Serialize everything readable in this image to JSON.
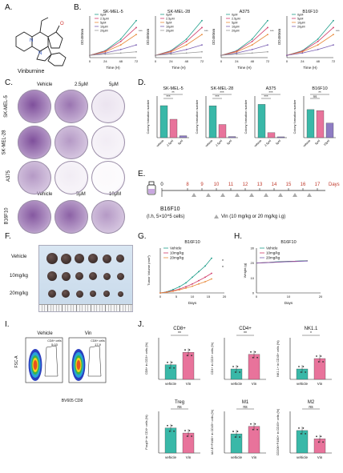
{
  "panel_labels": [
    "A.",
    "B.",
    "C.",
    "D.",
    "E.",
    "F.",
    "G.",
    "H.",
    "I.",
    "J."
  ],
  "panelA": {
    "compound": "Vinburnine"
  },
  "panelB": {
    "cell_lines": [
      "SK-MEL-5",
      "SK-MEL-28",
      "A375",
      "B16F10"
    ],
    "ylabel": "OD450nm",
    "xlabel": "Time (H)",
    "x_ticks": [
      "0",
      "24",
      "48",
      "72"
    ],
    "legend": [
      "0μM",
      "2.5μM",
      "5μM",
      "10μM",
      "20μM"
    ],
    "legend_b16": [
      "0μM",
      "5μM",
      "10μM",
      "20μM"
    ],
    "colors": [
      "#1f9e8a",
      "#d03a6a",
      "#e8893a",
      "#7a5fb3",
      "#999999"
    ]
  },
  "panelC": {
    "columns_top": [
      "Vehicle",
      "2.5μM",
      "5μM"
    ],
    "columns_bottom": [
      "Vehicle",
      "5μM",
      "10μM"
    ],
    "rows": [
      "SK-MEL-5",
      "SK-MEL-28",
      "A375",
      "B16F10"
    ]
  },
  "panelD": {
    "ylabel": "Colony formation number",
    "chart_data": [
      {
        "type": "bar",
        "title": "SK-MEL-5",
        "categories": [
          "vehicle",
          "2.5μM",
          "5μM"
        ],
        "values": [
          200,
          115,
          12
        ],
        "ylim": [
          0,
          260
        ],
        "sig": [
          "***",
          "**"
        ]
      },
      {
        "type": "bar",
        "title": "SK-MEL-28",
        "categories": [
          "vehicle",
          "2.5μM",
          "5μM"
        ],
        "values": [
          230,
          95,
          8
        ],
        "ylim": [
          0,
          300
        ],
        "sig": [
          "***",
          "***"
        ]
      },
      {
        "type": "bar",
        "title": "A375",
        "categories": [
          "vehicle",
          "2.5μM",
          "5μM"
        ],
        "values": [
          80,
          12,
          2
        ],
        "ylim": [
          0,
          100
        ],
        "sig": [
          "***",
          "***"
        ]
      },
      {
        "type": "bar",
        "title": "B16F10",
        "categories": [
          "vehicle",
          "5μM",
          "10μM"
        ],
        "values": [
          135,
          130,
          70
        ],
        "ylim": [
          0,
          200
        ],
        "sig": [
          "ns",
          "**"
        ]
      }
    ]
  },
  "panelE": {
    "days": [
      "0",
      "8",
      "9",
      "10",
      "11",
      "12",
      "13",
      "14",
      "15",
      "16",
      "17"
    ],
    "days_label": "Days",
    "model": "B16F10",
    "injection": "(I.h, 5×10^5 cells)",
    "treatment": "Vin (10 mg/kg or 20 mg/kg i.g)"
  },
  "panelF": {
    "rows": [
      "Vehicle",
      "10mg/kg",
      "20mg/kg"
    ]
  },
  "panelG": {
    "title": "B16F10",
    "ylabel": "Tumor Volume (mm³)",
    "xlabel": "Days",
    "legend": [
      "Vehicle",
      "10mg/kg",
      "20mg/kg"
    ],
    "sig": [
      "*",
      "*"
    ],
    "chart_data": {
      "type": "line",
      "x": [
        0,
        2,
        4,
        6,
        8,
        10,
        12,
        14,
        16
      ],
      "series": [
        {
          "name": "Vehicle",
          "values": [
            0,
            20,
            60,
            110,
            180,
            280,
            380,
            480,
            620
          ]
        },
        {
          "name": "10mg/kg",
          "values": [
            0,
            15,
            40,
            70,
            110,
            160,
            220,
            280,
            350
          ]
        },
        {
          "name": "20mg/kg",
          "values": [
            0,
            12,
            30,
            55,
            85,
            120,
            160,
            200,
            250
          ]
        }
      ],
      "xlim": [
        0,
        20
      ],
      "ylim": [
        0,
        800
      ]
    }
  },
  "panelH": {
    "title": "B16F10",
    "ylabel": "Weight (g)",
    "xlabel": "Days",
    "legend": [
      "Vehicle",
      "10mg/kg",
      "20mg/kg"
    ],
    "chart_data": {
      "type": "line",
      "x": [
        0,
        2,
        4,
        6,
        8,
        10,
        12,
        14,
        16
      ],
      "series": [
        {
          "name": "Vehicle",
          "values": [
            20,
            20.3,
            20.5,
            20.8,
            21,
            21.2,
            21.3,
            21.5,
            21.6
          ]
        },
        {
          "name": "10mg/kg",
          "values": [
            20,
            20.2,
            20.4,
            20.6,
            20.8,
            21,
            21.2,
            21.3,
            21.4
          ]
        },
        {
          "name": "20mg/kg",
          "values": [
            20,
            20.1,
            20.3,
            20.5,
            20.7,
            20.9,
            21,
            21.2,
            21.3
          ]
        }
      ],
      "xlim": [
        0,
        20
      ],
      "ylim": [
        0,
        30
      ]
    }
  },
  "panelI": {
    "columns": [
      "Vehicle",
      "Vin"
    ],
    "ylabel": "FSC-A",
    "xlabel": "BV605 CD8",
    "gates": [
      {
        "name": "CD8+ cells",
        "value": "5.03"
      },
      {
        "name": "CD8+ cells",
        "value": "17.9"
      }
    ]
  },
  "panelJ": {
    "chart_data": [
      {
        "type": "bar",
        "title": "CD8+",
        "ylabel": "CD8+ in CD3+ cells (%)",
        "categories": [
          "vehicle",
          "Vin"
        ],
        "values": [
          7,
          13
        ],
        "ylim": [
          0,
          20
        ],
        "sig": "**",
        "colors": [
          "#39b8a8",
          "#e8739b"
        ]
      },
      {
        "type": "bar",
        "title": "CD4+",
        "ylabel": "CD4+ in CD3+ cells (%)",
        "categories": [
          "vehicle",
          "Vin"
        ],
        "values": [
          5,
          12
        ],
        "ylim": [
          0,
          20
        ],
        "sig": "**",
        "colors": [
          "#39b8a8",
          "#e8739b"
        ]
      },
      {
        "type": "bar",
        "title": "NK1.1",
        "ylabel": "NK1.1+ in CD45+ cells (%)",
        "categories": [
          "vehicle",
          "Vin"
        ],
        "values": [
          5,
          10
        ],
        "ylim": [
          0,
          20
        ],
        "sig": "*",
        "colors": [
          "#39b8a8",
          "#e8739b"
        ]
      },
      {
        "type": "bar",
        "title": "Treg",
        "ylabel": "Foxp3+ in CD4+ cells (%)",
        "categories": [
          "vehicle",
          "Vin"
        ],
        "values": [
          6,
          4.8
        ],
        "ylim": [
          0,
          10
        ],
        "sig": "ns",
        "colors": [
          "#39b8a8",
          "#e8739b"
        ]
      },
      {
        "type": "bar",
        "title": "M1",
        "ylabel": "IA/I-E+F4/80+ in CD45+ cells (%)",
        "categories": [
          "vehicle",
          "Vin"
        ],
        "values": [
          2.3,
          3.2
        ],
        "ylim": [
          0,
          5
        ],
        "sig": "ns",
        "colors": [
          "#39b8a8",
          "#e8739b"
        ]
      },
      {
        "type": "bar",
        "title": "M2",
        "ylabel": "CD206+F4/80+ in CD45+ cells (%)",
        "categories": [
          "vehicle",
          "Vin"
        ],
        "values": [
          2.7,
          1.7
        ],
        "ylim": [
          0,
          5
        ],
        "sig": "ns",
        "colors": [
          "#39b8a8",
          "#e8739b"
        ]
      }
    ]
  }
}
